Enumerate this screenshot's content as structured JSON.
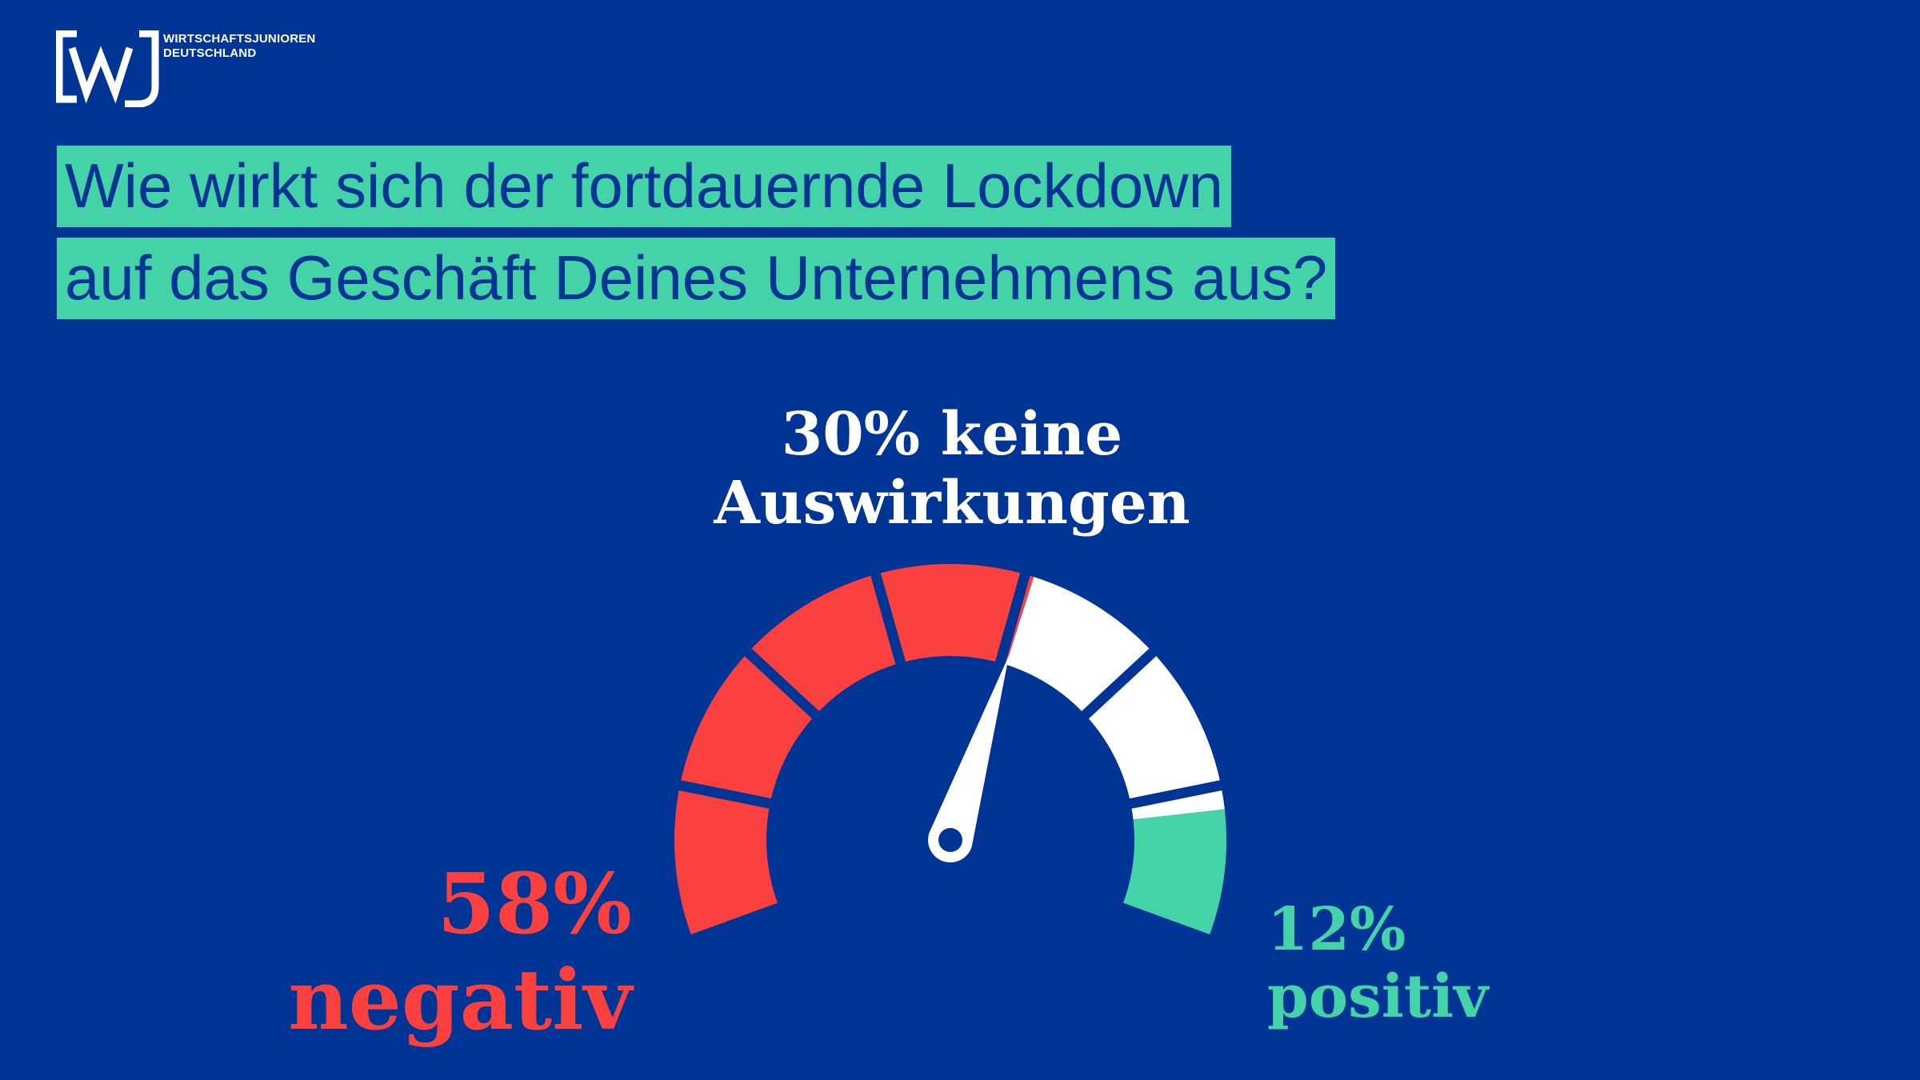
{
  "brand": {
    "logo_text_line1": "WIRTSCHAFTSJUNIOREN",
    "logo_text_line2": "DEUTSCHLAND",
    "logo_mark": "[wj]"
  },
  "question": {
    "line1": "Wie wirkt sich der fortdauernde Lockdown",
    "line2": "auf das Geschäft Deines Unternehmens aus?"
  },
  "colors": {
    "background": "#003595",
    "negative": "#fb4040",
    "neutral": "#ffffff",
    "positive": "#44d3a8"
  },
  "chart_data": {
    "type": "gauge",
    "needle_value": 58,
    "categories": [
      "negativ",
      "keine Auswirkungen",
      "positiv"
    ],
    "values": [
      58,
      30,
      12
    ],
    "labels": {
      "neutral_pct": "30% keine",
      "neutral_text": "Auswirkungen",
      "negative_pct": "58%",
      "negative_text": "negativ",
      "positive_pct": "12%",
      "positive_text": "positiv"
    }
  }
}
